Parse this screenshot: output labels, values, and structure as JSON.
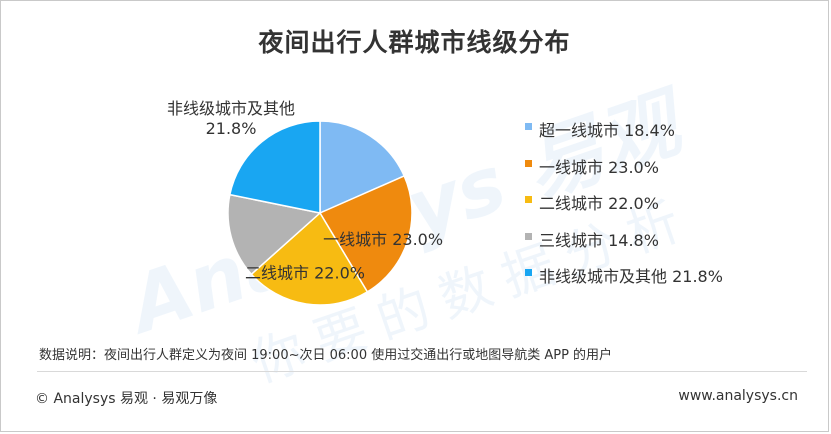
{
  "chart_data": {
    "type": "pie",
    "title": "夜间出行人群城市线级分布",
    "categories": [
      "超一线城市",
      "一线城市",
      "二线城市",
      "三线城市",
      "非线级城市及其他"
    ],
    "values": [
      18.4,
      23.0,
      22.0,
      14.8,
      21.8
    ],
    "value_labels": [
      "18.4%",
      "23.0%",
      "22.0%",
      "14.8%",
      "21.8%"
    ],
    "legend_labels": [
      "超一线城市 18.4%",
      "一线城市 23.0%",
      "二线城市 22.0%",
      "三线城市 14.8%",
      "非线级城市及其他 21.8%"
    ],
    "colors": [
      "#7fbaf3",
      "#ef8a0e",
      "#f7bb12",
      "#b3b3b3",
      "#19a6f2"
    ],
    "data_labels": [
      {
        "index": 1,
        "text": "一线城市 23.0%"
      },
      {
        "index": 2,
        "text": "二线城市 22.0%"
      },
      {
        "index": 4,
        "lines": [
          "非线级城市及其他",
          "21.8%"
        ]
      }
    ],
    "legend_position": "right"
  },
  "note": "数据说明：夜间出行人群定义为夜间 19:00~次日 06:00 使用过交通出行或地图导航类 APP 的用户",
  "footer": {
    "left": "© Analysys  易观 · 易观万像",
    "right": "www.analysys.cn"
  },
  "watermark": {
    "brand": "Analysys 易观",
    "slogan": "你要的数据分析"
  }
}
